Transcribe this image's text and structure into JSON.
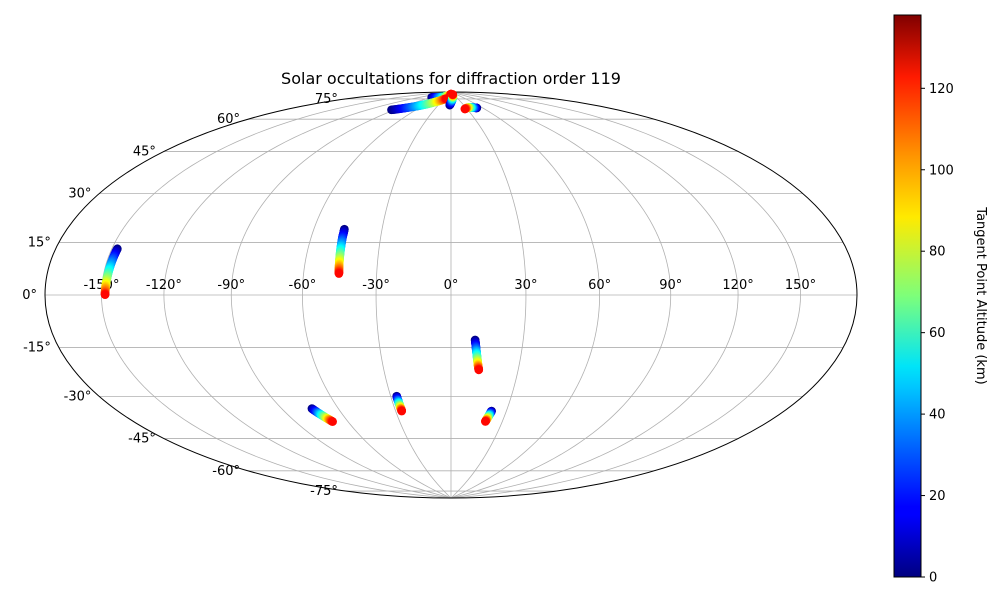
{
  "chart_data": {
    "type": "scatter",
    "projection": "hammer",
    "title": "Solar occultations for diffraction order 119",
    "grid": true,
    "x_ticks": [
      -150,
      -120,
      -90,
      -60,
      -30,
      0,
      30,
      60,
      90,
      120,
      150
    ],
    "x_tick_labels": [
      "-150°",
      "-120°",
      "-90°",
      "-60°",
      "-30°",
      "0°",
      "30°",
      "60°",
      "90°",
      "120°",
      "150°"
    ],
    "y_ticks": [
      -75,
      -60,
      -45,
      -30,
      -15,
      0,
      15,
      30,
      45,
      60,
      75
    ],
    "y_tick_labels": [
      "-75°",
      "-60°",
      "-45°",
      "-30°",
      "-15°",
      "0°",
      "15°",
      "30°",
      "45°",
      "60°",
      "75°"
    ],
    "colorbar": {
      "label": "Tangent Point Altitude (km)",
      "colormap": "jet",
      "range": [
        0,
        138
      ],
      "ticks": [
        0,
        20,
        40,
        60,
        80,
        100,
        120
      ],
      "tick_labels": [
        "0",
        "20",
        "40",
        "60",
        "80",
        "100",
        "120"
      ]
    },
    "series": [
      {
        "points": [
          [
            -147.2,
            14.9,
            0
          ],
          [
            -147.3,
            13.8,
            10
          ],
          [
            -147.4,
            12.5,
            20
          ],
          [
            -147.5,
            11.1,
            30
          ],
          [
            -147.6,
            9.6,
            40
          ],
          [
            -147.7,
            8.2,
            50
          ],
          [
            -147.8,
            6.8,
            60
          ],
          [
            -147.9,
            5.4,
            70
          ],
          [
            -148.0,
            4.1,
            80
          ],
          [
            -148.1,
            2.9,
            90
          ],
          [
            -148.1,
            1.8,
            100
          ],
          [
            -148.2,
            0.8,
            110
          ],
          [
            -148.2,
            0.1,
            120
          ]
        ]
      },
      {
        "points": [
          [
            -46.5,
            26.0,
            0
          ],
          [
            -46.4,
            24.6,
            10
          ],
          [
            -46.4,
            22.9,
            20
          ],
          [
            -46.3,
            21.3,
            30
          ],
          [
            -46.2,
            19.7,
            40
          ],
          [
            -46.1,
            18.1,
            50
          ],
          [
            -46.0,
            16.6,
            60
          ],
          [
            -45.9,
            15.0,
            70
          ],
          [
            -45.8,
            13.5,
            80
          ],
          [
            -45.7,
            12.1,
            90
          ],
          [
            -45.6,
            10.7,
            100
          ],
          [
            -45.5,
            9.5,
            110
          ],
          [
            -45.4,
            8.4,
            120
          ]
        ]
      },
      {
        "points": [
          [
            10.0,
            -18.0,
            0
          ],
          [
            10.2,
            -19.2,
            10
          ],
          [
            10.4,
            -20.4,
            20
          ],
          [
            10.6,
            -21.6,
            30
          ],
          [
            10.8,
            -22.7,
            40
          ],
          [
            11.0,
            -23.8,
            50
          ],
          [
            11.2,
            -24.9,
            60
          ],
          [
            11.4,
            -25.9,
            70
          ],
          [
            11.6,
            -26.9,
            80
          ],
          [
            11.8,
            -27.9,
            90
          ],
          [
            12.0,
            -28.7,
            100
          ],
          [
            12.2,
            -29.5,
            110
          ],
          [
            12.4,
            -30.2,
            120
          ]
        ]
      },
      {
        "points": [
          [
            -74.0,
            -44.5,
            0
          ],
          [
            -73.6,
            -45.1,
            10
          ],
          [
            -73.1,
            -45.7,
            20
          ],
          [
            -72.7,
            -46.3,
            30
          ],
          [
            -72.2,
            -46.8,
            40
          ],
          [
            -71.8,
            -47.3,
            50
          ],
          [
            -71.3,
            -47.8,
            60
          ],
          [
            -70.9,
            -48.3,
            70
          ],
          [
            -70.4,
            -48.8,
            80
          ],
          [
            -70.0,
            -49.2,
            90
          ],
          [
            -69.6,
            -49.6,
            100
          ],
          [
            -69.2,
            -50.0,
            110
          ],
          [
            -68.8,
            -50.4,
            120
          ]
        ]
      },
      {
        "points": [
          [
            -27.0,
            -41.0,
            0
          ],
          [
            -27.0,
            -41.6,
            10
          ],
          [
            -27.0,
            -42.3,
            20
          ],
          [
            -26.9,
            -42.9,
            30
          ],
          [
            -26.9,
            -43.5,
            40
          ],
          [
            -26.9,
            -44.0,
            50
          ],
          [
            -26.8,
            -44.6,
            60
          ],
          [
            -26.8,
            -45.1,
            70
          ],
          [
            -26.8,
            -45.6,
            80
          ],
          [
            -26.8,
            -46.1,
            90
          ],
          [
            -26.7,
            -46.5,
            100
          ],
          [
            -26.7,
            -47.0,
            110
          ],
          [
            -26.7,
            -47.4,
            120
          ]
        ]
      },
      {
        "points": [
          [
            22.0,
            -47.5,
            0
          ],
          [
            21.8,
            -47.9,
            10
          ],
          [
            21.7,
            -48.3,
            20
          ],
          [
            21.5,
            -48.7,
            30
          ],
          [
            21.4,
            -49.1,
            40
          ],
          [
            21.2,
            -49.5,
            50
          ],
          [
            21.1,
            -49.9,
            60
          ],
          [
            20.9,
            -50.3,
            70
          ],
          [
            20.7,
            -50.7,
            80
          ],
          [
            20.6,
            -51.1,
            90
          ],
          [
            20.4,
            -51.4,
            100
          ],
          [
            20.3,
            -51.8,
            110
          ],
          [
            20.1,
            -52.1,
            120
          ]
        ]
      },
      {
        "points": [
          [
            -89.0,
            86.0,
            0
          ],
          [
            -80.0,
            86.2,
            10
          ],
          [
            -72.0,
            86.4,
            20
          ],
          [
            -64.0,
            86.6,
            30
          ],
          [
            -56.0,
            86.9,
            40
          ],
          [
            -48.0,
            87.1,
            50
          ],
          [
            -40.0,
            87.4,
            60
          ],
          [
            -32.0,
            87.7,
            70
          ],
          [
            -24.0,
            88.0,
            80
          ],
          [
            -17.0,
            88.2,
            90
          ],
          [
            -10.0,
            88.5,
            100
          ],
          [
            -4.0,
            88.7,
            110
          ],
          [
            1.0,
            88.9,
            120
          ]
        ]
      },
      {
        "points": [
          [
            -94.0,
            77.6,
            0
          ],
          [
            -88.0,
            78.5,
            10
          ],
          [
            -82.0,
            79.4,
            20
          ],
          [
            -76.0,
            80.3,
            30
          ],
          [
            -70.0,
            81.1,
            40
          ],
          [
            -64.0,
            81.9,
            50
          ],
          [
            -58.0,
            82.7,
            60
          ],
          [
            -52.0,
            83.5,
            70
          ],
          [
            -46.0,
            84.2,
            80
          ],
          [
            -40.0,
            84.8,
            90
          ],
          [
            -34.0,
            85.4,
            100
          ],
          [
            -28.0,
            85.9,
            110
          ],
          [
            -22.0,
            86.3,
            120
          ]
        ]
      },
      {
        "points": [
          [
            -3.0,
            82.8,
            0
          ],
          [
            -1.0,
            83.7,
            10
          ],
          [
            1.0,
            84.5,
            20
          ],
          [
            3.0,
            85.2,
            30
          ],
          [
            5.0,
            85.8,
            40
          ],
          [
            7.0,
            86.4,
            50
          ],
          [
            9.0,
            86.9,
            60
          ],
          [
            11.0,
            87.3,
            70
          ],
          [
            13.0,
            87.7,
            80
          ],
          [
            15.0,
            88.0,
            90
          ],
          [
            17.0,
            88.3,
            100
          ],
          [
            18.5,
            88.5,
            110
          ],
          [
            20.0,
            88.6,
            120
          ]
        ]
      },
      {
        "points": [
          [
            50.0,
            80.7,
            0
          ],
          [
            48.0,
            80.8,
            10
          ],
          [
            46.0,
            80.9,
            20
          ],
          [
            44.0,
            81.0,
            30
          ],
          [
            42.0,
            81.1,
            40
          ],
          [
            40.0,
            81.1,
            50
          ],
          [
            38.0,
            81.2,
            60
          ],
          [
            36.0,
            81.2,
            70
          ],
          [
            34.0,
            81.2,
            80
          ],
          [
            32.0,
            81.1,
            90
          ],
          [
            30.0,
            81.0,
            100
          ],
          [
            28.0,
            80.8,
            110
          ],
          [
            26.0,
            80.6,
            120
          ]
        ]
      }
    ]
  }
}
